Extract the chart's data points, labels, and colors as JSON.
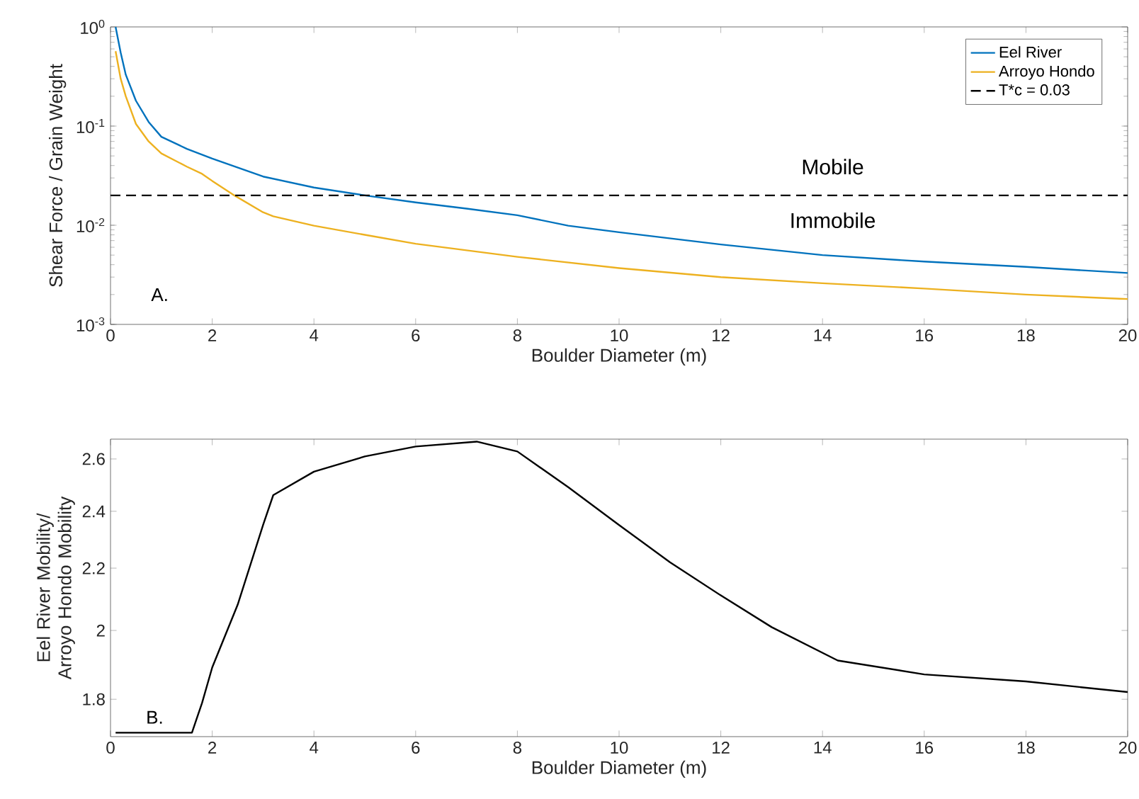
{
  "chart_data": [
    {
      "type": "line",
      "xlabel": "Boulder Diameter (m)",
      "ylabel": "Shear Force / Grain Weight",
      "log": "y",
      "xlim": [
        0,
        20
      ],
      "xticks": [
        0,
        2,
        4,
        6,
        8,
        10,
        12,
        14,
        16,
        18,
        20
      ],
      "ylim": [
        0.001,
        1
      ],
      "yticks": [
        {
          "value": 0.001,
          "label": "10$^{-3}$"
        },
        {
          "value": 0.01,
          "label": "10$^{-2}$"
        },
        {
          "value": 0.1,
          "label": "10$^{-1}$"
        },
        {
          "value": 1,
          "label": "10$^{0}$"
        }
      ],
      "legend": "top right",
      "line_style": "solid",
      "marker": "none",
      "series": [
        {
          "name": "Eel River",
          "color": "#0072bd",
          "x": [
            0.1,
            0.2,
            0.3,
            0.5,
            0.75,
            1,
            1.5,
            2,
            3,
            4,
            5,
            6,
            7,
            8,
            9,
            10,
            12,
            14,
            16,
            18,
            20
          ],
          "values": [
            1.0,
            0.55,
            0.33,
            0.18,
            0.11,
            0.078,
            0.059,
            0.047,
            0.031,
            0.024,
            0.02,
            0.017,
            0.0147,
            0.0126,
            0.0099,
            0.0085,
            0.0064,
            0.005,
            0.0043,
            0.0038,
            0.0033
          ]
        },
        {
          "name": "Arroyo Hondo",
          "color": "#edb120",
          "x": [
            0.1,
            0.2,
            0.3,
            0.5,
            0.75,
            1,
            1.5,
            1.8,
            2,
            2.4,
            3,
            3.2,
            4,
            5,
            6,
            8,
            10,
            12,
            14,
            16,
            18,
            20
          ],
          "values": [
            0.57,
            0.3,
            0.2,
            0.105,
            0.07,
            0.053,
            0.039,
            0.033,
            0.028,
            0.0205,
            0.0135,
            0.0123,
            0.0099,
            0.008,
            0.0065,
            0.0048,
            0.0037,
            0.003,
            0.0026,
            0.0023,
            0.002,
            0.0018
          ]
        },
        {
          "name": "T*c = 0.03",
          "color": "#000000",
          "line_style": "dashed",
          "x": [
            0,
            20
          ],
          "values": [
            0.02,
            0.02
          ]
        }
      ],
      "annotations": [
        "A.",
        "Mobile",
        "Immobile"
      ]
    },
    {
      "type": "line",
      "xlabel": "Boulder Diameter (m)",
      "ylabel": "Eel River Mobility/ Arroyo Hondo Mobility",
      "log": "y",
      "xlim": [
        0,
        20
      ],
      "xticks": [
        0,
        2,
        4,
        6,
        8,
        10,
        12,
        14,
        16,
        18,
        20
      ],
      "ylim": [
        1.7,
        2.68
      ],
      "yticks": [
        1.8,
        2,
        2.2,
        2.4,
        2.6
      ],
      "line_style": "solid",
      "marker": "none",
      "series": [
        {
          "color": "#000000",
          "x": [
            0.1,
            1.6,
            1.8,
            2,
            2.5,
            3,
            3.2,
            4,
            5,
            6,
            7.2,
            8,
            9,
            10,
            11,
            12,
            13,
            14.3,
            16,
            18,
            20
          ],
          "values": [
            1.71,
            1.71,
            1.79,
            1.89,
            2.08,
            2.35,
            2.46,
            2.55,
            2.61,
            2.65,
            2.67,
            2.63,
            2.49,
            2.35,
            2.22,
            2.11,
            2.01,
            1.91,
            1.87,
            1.85,
            1.82
          ]
        }
      ],
      "annotations": [
        "B."
      ]
    }
  ]
}
